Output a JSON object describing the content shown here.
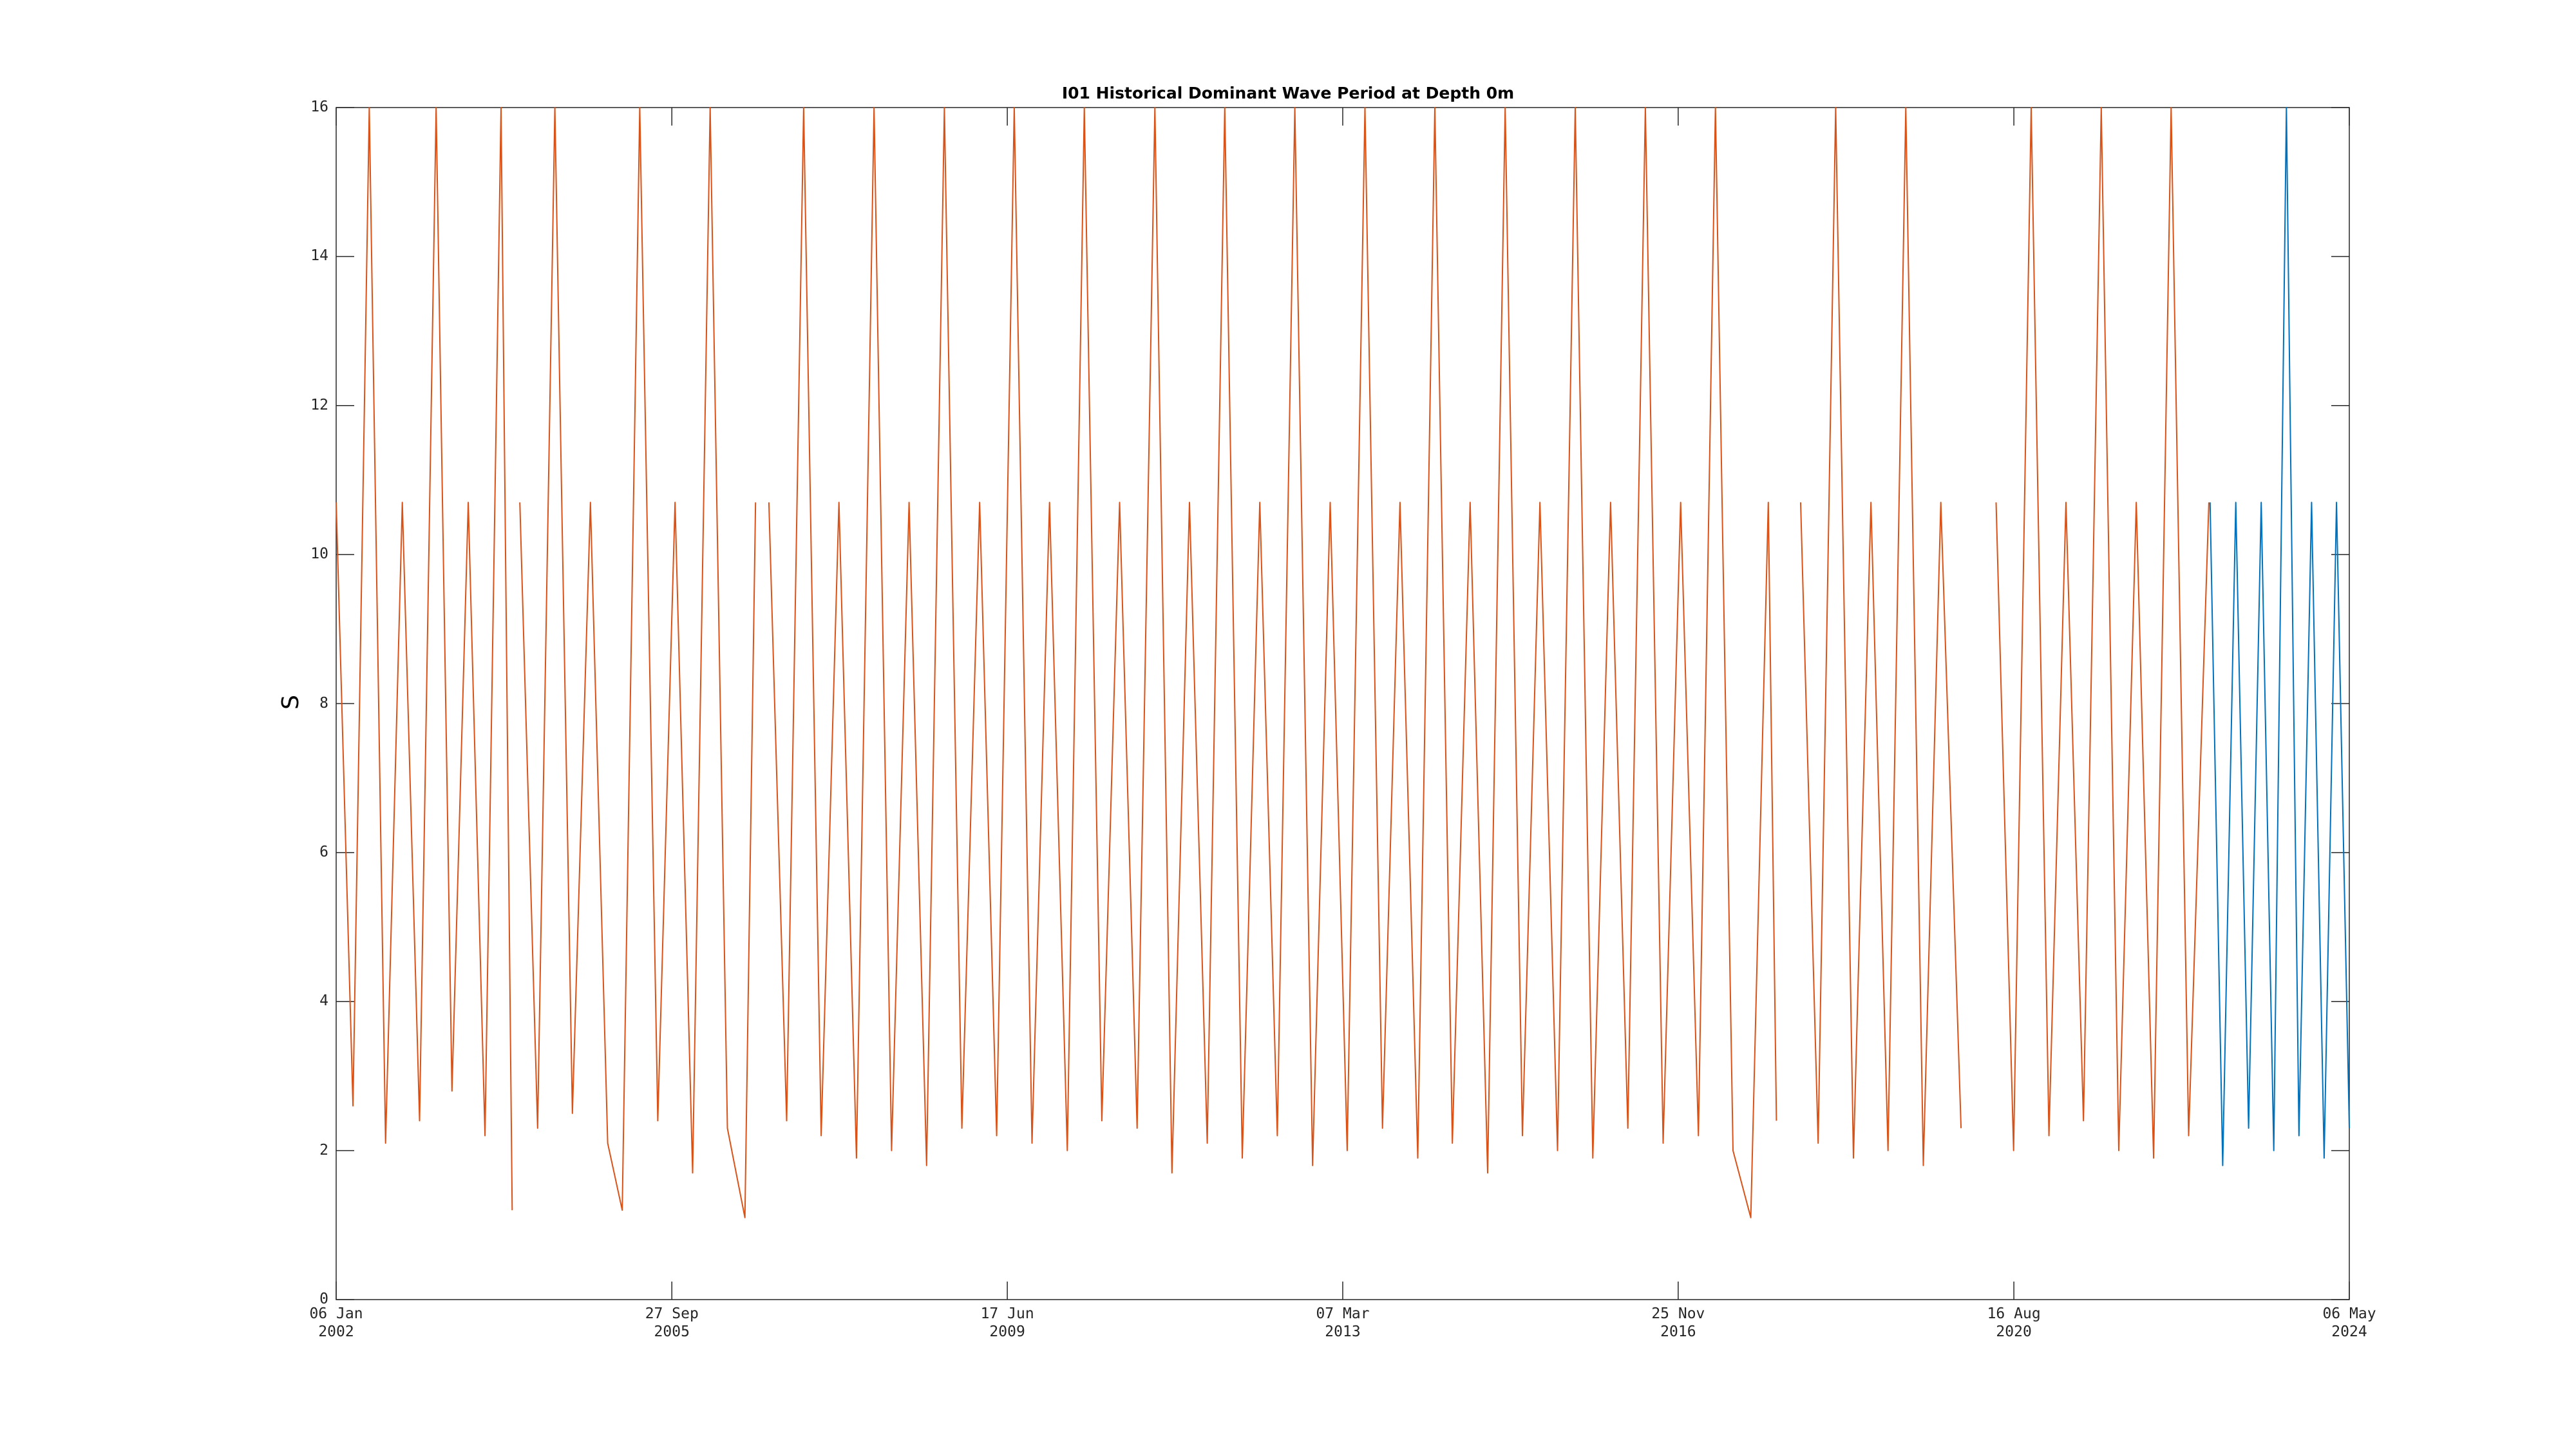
{
  "chart_data": {
    "type": "line",
    "title": "I01 Historical Dominant Wave Period at Depth 0m",
    "y_label": "S",
    "xlim": [
      "2002-01-06",
      "2024-05-06"
    ],
    "xticks": [
      {
        "value": "2002-01-06",
        "label": "06 Jan\n2002"
      },
      {
        "value": "2005-09-27",
        "label": "27 Sep\n2005"
      },
      {
        "value": "2009-06-17",
        "label": "17 Jun\n2009"
      },
      {
        "value": "2013-03-07",
        "label": "07 Mar\n2013"
      },
      {
        "value": "2016-11-25",
        "label": "25 Nov\n2016"
      },
      {
        "value": "2020-08-16",
        "label": "16 Aug\n2020"
      },
      {
        "value": "2024-05-06",
        "label": "06 May\n2024"
      }
    ],
    "ylim": [
      0,
      16
    ],
    "yticks": [
      0,
      2,
      4,
      6,
      8,
      10,
      12,
      14,
      16
    ],
    "series": [
      {
        "color": "#D95319",
        "x": [
          "2002-01-06",
          "2002-03-15",
          "2002-05-20",
          "2002-07-25",
          "2002-10-01",
          "2002-12-10",
          "2003-02-15",
          "2003-04-20",
          "2003-06-25",
          "2003-09-01",
          "2003-11-05",
          "2003-12-20",
          "2004-01-10",
          "2004-01-20",
          "2004-04-01",
          "2004-06-10",
          "2004-08-20",
          "2004-11-01",
          "2005-01-10",
          "2005-03-10",
          "2005-05-20",
          "2005-08-01",
          "2005-10-10",
          "2005-12-20",
          "2006-03-01",
          "2006-05-10",
          "2006-07-20",
          "2006-09-01",
          "2006-09-20",
          "2006-10-25",
          "2007-01-05",
          "2007-03-15",
          "2007-05-25",
          "2007-08-05",
          "2007-10-15",
          "2007-12-25",
          "2008-03-05",
          "2008-05-15",
          "2008-07-25",
          "2008-10-05",
          "2008-12-15",
          "2009-02-25",
          "2009-05-05",
          "2009-07-15",
          "2009-09-25",
          "2009-12-05",
          "2010-02-15",
          "2010-04-25",
          "2010-07-05",
          "2010-09-15",
          "2010-11-25",
          "2011-02-05",
          "2011-04-15",
          "2011-06-25",
          "2011-09-05",
          "2011-11-15",
          "2012-01-25",
          "2012-04-05",
          "2012-06-15",
          "2012-08-25",
          "2012-11-05",
          "2013-01-15",
          "2013-03-25",
          "2013-06-05",
          "2013-08-15",
          "2013-10-25",
          "2014-01-05",
          "2014-03-15",
          "2014-05-25",
          "2014-08-05",
          "2014-10-15",
          "2014-12-25",
          "2015-03-05",
          "2015-05-15",
          "2015-07-25",
          "2015-10-05",
          "2015-12-15",
          "2016-02-25",
          "2016-05-05",
          "2016-07-15",
          "2016-09-25",
          "2016-12-05",
          "2017-02-15",
          "2017-04-25",
          "2017-07-05",
          "2017-09-15",
          "2017-11-25",
          "2017-12-28",
          "2018-02-01",
          "2018-04-05",
          "2018-06-15",
          "2018-08-25",
          "2018-11-05",
          "2019-01-15",
          "2019-03-25",
          "2019-06-05",
          "2019-08-15",
          "2019-10-25",
          "2020-01-15",
          "2020-03-01",
          "2020-06-05",
          "2020-08-15",
          "2020-10-25",
          "2021-01-05",
          "2021-03-15",
          "2021-05-25",
          "2021-08-05",
          "2021-10-15",
          "2021-12-25",
          "2022-03-05",
          "2022-05-15",
          "2022-07-25",
          "2022-10-15"
        ],
        "values": [
          10.7,
          2.6,
          16,
          2.1,
          10.7,
          2.4,
          16,
          2.8,
          10.7,
          2.2,
          16,
          1.2,
          null,
          10.7,
          2.3,
          16,
          2.5,
          10.7,
          2.1,
          1.2,
          16,
          2.4,
          10.7,
          1.7,
          16,
          2.3,
          1.1,
          10.7,
          null,
          10.7,
          2.4,
          16,
          2.2,
          10.7,
          1.9,
          16,
          2.0,
          10.7,
          1.8,
          16,
          2.3,
          10.7,
          2.2,
          16,
          2.1,
          10.7,
          2.0,
          16,
          2.4,
          10.7,
          2.3,
          16,
          1.7,
          10.7,
          2.1,
          16,
          1.9,
          10.7,
          2.2,
          16,
          1.8,
          10.7,
          2.0,
          16,
          2.3,
          10.7,
          1.9,
          16,
          2.1,
          10.7,
          1.7,
          16,
          2.2,
          10.7,
          2.0,
          16,
          1.9,
          10.7,
          2.3,
          16,
          2.1,
          10.7,
          2.2,
          16,
          2.0,
          1.1,
          10.7,
          2.4,
          null,
          10.7,
          2.1,
          16,
          1.9,
          10.7,
          2.0,
          16,
          1.8,
          10.7,
          2.3,
          null,
          10.7,
          2.0,
          16,
          2.2,
          10.7,
          2.4,
          16,
          2.0,
          10.7,
          1.9,
          16,
          2.2,
          10.7
        ]
      },
      {
        "color": "#0072BD",
        "x": [
          "2022-10-20",
          "2022-12-10",
          "2023-02-01",
          "2023-03-25",
          "2023-05-15",
          "2023-07-05",
          "2023-08-25",
          "2023-10-15",
          "2023-12-05",
          "2024-01-25",
          "2024-03-15",
          "2024-05-06"
        ],
        "values": [
          10.7,
          1.8,
          10.7,
          2.3,
          10.7,
          2.0,
          16,
          2.2,
          10.7,
          1.9,
          10.7,
          2.3
        ]
      }
    ]
  }
}
